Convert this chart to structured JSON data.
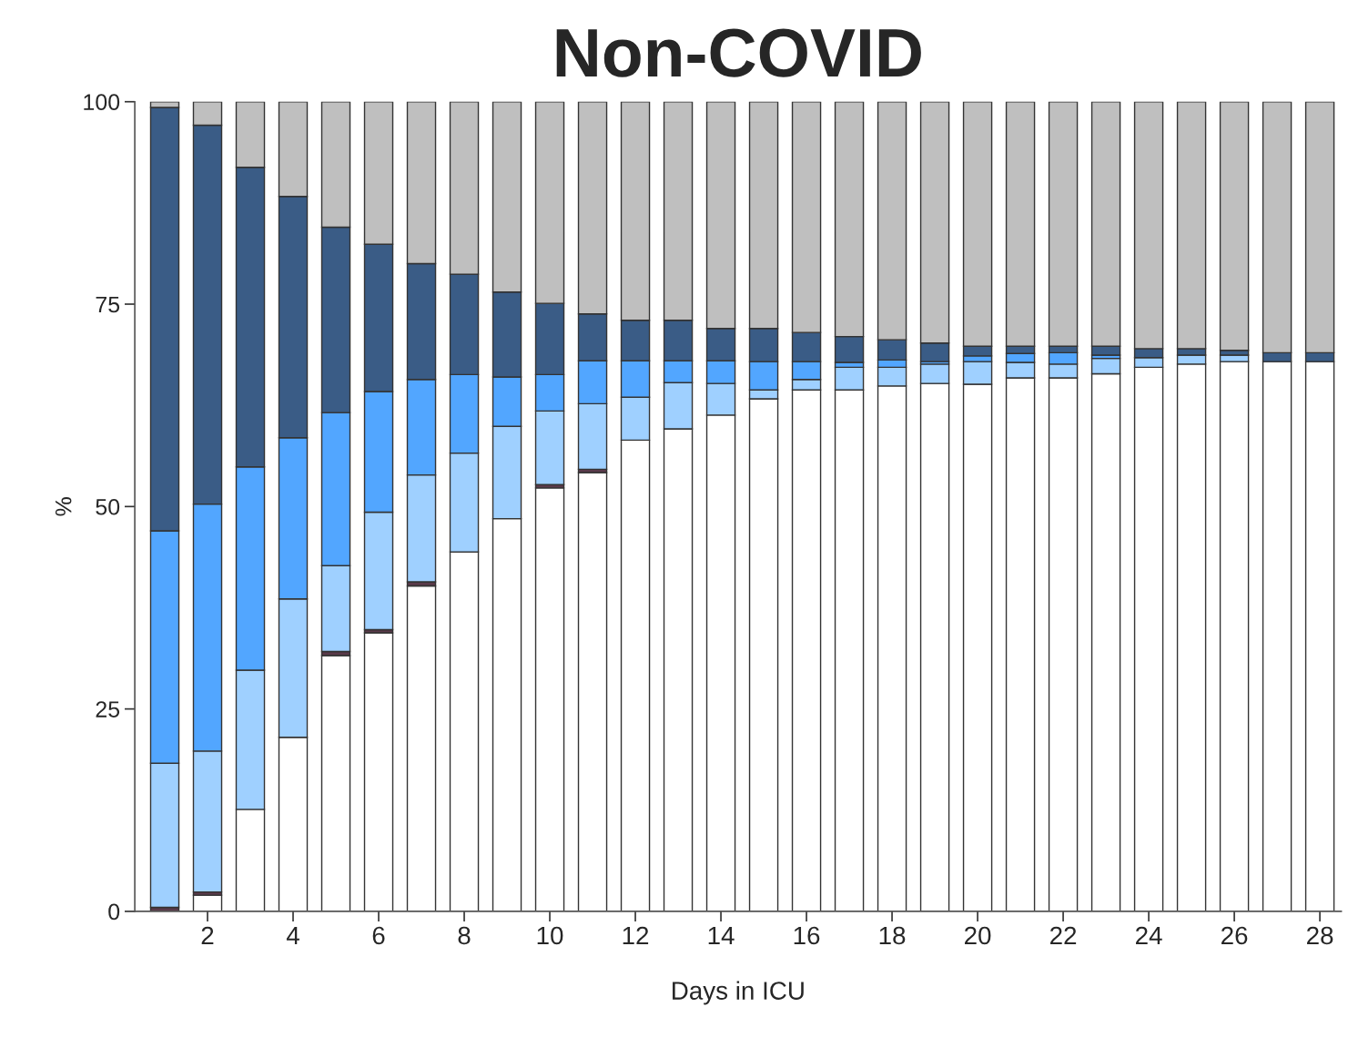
{
  "chart_data": {
    "type": "bar",
    "title": "Non-COVID",
    "xlabel": "Days in ICU",
    "ylabel": "%",
    "stacked": true,
    "x": [
      1,
      2,
      3,
      4,
      5,
      6,
      7,
      8,
      9,
      10,
      11,
      12,
      13,
      14,
      15,
      16,
      17,
      18,
      19,
      20,
      21,
      22,
      23,
      24,
      25,
      26,
      27,
      28
    ],
    "series": [
      {
        "color": "#ffffff",
        "values": [
          0,
          2.0,
          12.6,
          21.5,
          31.6,
          34.4,
          40.2,
          44.4,
          48.5,
          52.3,
          54.2,
          58.2,
          59.6,
          61.3,
          63.3,
          64.4,
          64.4,
          64.9,
          65.2,
          65.1,
          65.9,
          65.9,
          66.4,
          67.2,
          67.6,
          67.9,
          67.9,
          67.9
        ]
      },
      {
        "color": "#5a3a4a",
        "values": [
          0.5,
          0.4,
          0,
          0,
          0.5,
          0.4,
          0.5,
          0,
          0,
          0.4,
          0.4,
          0,
          0,
          0,
          0,
          0,
          0,
          0,
          0,
          0,
          0,
          0,
          0,
          0,
          0,
          0,
          0,
          0
        ]
      },
      {
        "color": "#9fd0ff",
        "values": [
          17.8,
          17.4,
          17.2,
          17.1,
          10.6,
          14.5,
          13.2,
          12.2,
          11.4,
          9.1,
          8.1,
          5.3,
          5.7,
          3.9,
          1.1,
          1.3,
          2.8,
          2.3,
          2.4,
          2.8,
          1.9,
          1.7,
          1.9,
          1.2,
          1.1,
          0.8,
          0,
          0
        ]
      },
      {
        "color": "#52a6ff",
        "values": [
          28.7,
          30.5,
          25.1,
          19.9,
          18.9,
          14.9,
          11.8,
          9.7,
          6.1,
          4.5,
          5.3,
          4.5,
          2.7,
          2.8,
          3.5,
          2.2,
          0.6,
          0.9,
          0.3,
          0.7,
          1.1,
          1.4,
          0.4,
          0,
          0,
          0,
          0,
          0
        ]
      },
      {
        "color": "#3a5c86",
        "values": [
          52.3,
          46.8,
          37.0,
          29.8,
          22.9,
          18.2,
          14.3,
          12.4,
          10.5,
          8.8,
          5.8,
          5.0,
          5.0,
          4.0,
          4.1,
          3.6,
          3.2,
          2.5,
          2.3,
          1.2,
          0.9,
          0.8,
          1.1,
          1.1,
          0.8,
          0.6,
          1.1,
          1.1
        ]
      },
      {
        "color": "#bfbfbf",
        "values": [
          0.7,
          2.9,
          8.1,
          11.7,
          15.5,
          17.6,
          20.0,
          21.3,
          23.5,
          24.9,
          26.2,
          27.0,
          27.0,
          28.0,
          28.0,
          28.5,
          29.0,
          29.4,
          29.8,
          30.2,
          30.2,
          30.2,
          30.2,
          30.5,
          30.5,
          30.7,
          31.0,
          31.0
        ]
      }
    ],
    "xlim": [
      0.3,
      28.5
    ],
    "xticks": [
      2,
      4,
      6,
      8,
      10,
      12,
      14,
      16,
      18,
      20,
      22,
      24,
      26,
      28
    ],
    "ylim": [
      0,
      100
    ],
    "yticks": [
      0,
      25,
      50,
      75,
      100
    ],
    "grid": false,
    "legend": false
  }
}
